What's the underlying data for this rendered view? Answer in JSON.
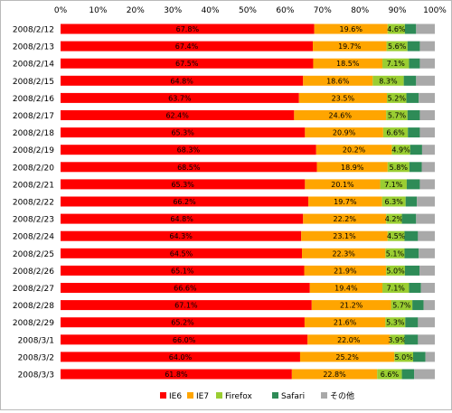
{
  "chart_data": {
    "type": "bar",
    "orientation": "horizontal",
    "stacked": true,
    "categories": [
      "2008/2/12",
      "2008/2/13",
      "2008/2/14",
      "2008/2/15",
      "2008/2/16",
      "2008/2/17",
      "2008/2/18",
      "2008/2/19",
      "2008/2/20",
      "2008/2/21",
      "2008/2/22",
      "2008/2/23",
      "2008/2/24",
      "2008/2/25",
      "2008/2/26",
      "2008/2/27",
      "2008/2/28",
      "2008/2/29",
      "2008/3/1",
      "2008/3/2",
      "2008/3/3"
    ],
    "series": [
      {
        "name": "IE6",
        "color": "#ff0000",
        "labeled": true,
        "values": [
          67.8,
          67.4,
          67.5,
          64.8,
          63.7,
          62.4,
          65.3,
          68.3,
          68.5,
          65.3,
          66.2,
          64.8,
          64.3,
          64.5,
          65.1,
          66.6,
          67.1,
          65.2,
          66.0,
          64.0,
          61.8
        ],
        "labels": [
          "67.8%",
          "67.4%",
          "67.5%",
          "64.8%",
          "63.7%",
          "62.4%",
          "65.3%",
          "68.3%",
          "68.5%",
          "65.3%",
          "66.2%",
          "64.8%",
          "64.3%",
          "64.5%",
          "65.1%",
          "66.6%",
          "67.1%",
          "65.2%",
          "66.0%",
          "64.0%",
          "61.8%"
        ]
      },
      {
        "name": "IE7",
        "color": "#ffa500",
        "labeled": true,
        "values": [
          19.6,
          19.7,
          18.5,
          18.6,
          23.5,
          24.6,
          20.9,
          20.2,
          18.9,
          20.1,
          19.7,
          22.2,
          23.1,
          22.3,
          21.9,
          19.4,
          21.2,
          21.6,
          22.0,
          25.2,
          22.8
        ],
        "labels": [
          "19.6%",
          "19.7%",
          "18.5%",
          "18.6%",
          "23.5%",
          "24.6%",
          "20.9%",
          "20.2%",
          "18.9%",
          "20.1%",
          "19.7%",
          "22.2%",
          "23.1%",
          "22.3%",
          "21.9%",
          "19.4%",
          "21.2%",
          "21.6%",
          "22.0%",
          "25.2%",
          "22.8%"
        ]
      },
      {
        "name": "Firefox",
        "color": "#9acd32",
        "labeled": true,
        "values": [
          4.6,
          5.6,
          7.1,
          8.3,
          5.2,
          5.7,
          6.6,
          4.9,
          5.8,
          7.1,
          6.3,
          4.2,
          4.5,
          5.1,
          5.0,
          7.1,
          5.7,
          5.3,
          3.9,
          5.0,
          6.6
        ],
        "labels": [
          "4.6%",
          "5.6%",
          "7.1%",
          "8.3%",
          "5.2%",
          "5.7%",
          "6.6%",
          "4.9%",
          "5.8%",
          "7.1%",
          "6.3%",
          "4.2%",
          "4.5%",
          "5.1%",
          "5.0%",
          "7.1%",
          "5.7%",
          "5.3%",
          "3.9%",
          "5.0%",
          "6.6%"
        ]
      },
      {
        "name": "Safari",
        "color": "#2e8b57",
        "labeled": false,
        "values": [
          3.0,
          3.3,
          2.9,
          3.3,
          3.3,
          3.3,
          3.2,
          3.2,
          3.3,
          3.5,
          3.0,
          3.8,
          3.6,
          3.8,
          3.9,
          3.2,
          3.0,
          3.4,
          3.6,
          3.3,
          3.3
        ]
      },
      {
        "name": "その他",
        "color": "#a9a9a9",
        "labeled": false,
        "values": [
          5.0,
          4.0,
          4.0,
          5.0,
          4.3,
          4.0,
          4.0,
          3.4,
          3.5,
          4.0,
          4.8,
          5.0,
          4.5,
          4.3,
          4.1,
          3.7,
          3.0,
          4.5,
          4.5,
          2.5,
          5.5
        ]
      }
    ],
    "x_ticks": [
      "0%",
      "10%",
      "20%",
      "30%",
      "40%",
      "50%",
      "60%",
      "70%",
      "80%",
      "90%",
      "100%"
    ],
    "xlim": [
      0,
      100
    ],
    "grid": false,
    "legend_position": "bottom"
  }
}
